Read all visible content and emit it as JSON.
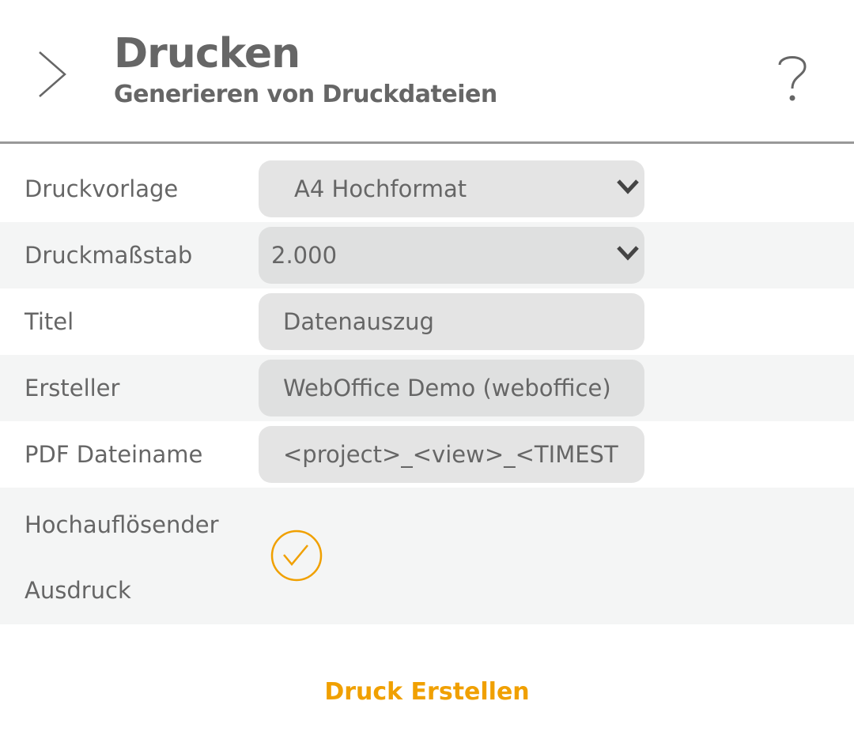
{
  "header": {
    "title": "Drucken",
    "subtitle": "Generieren von Druckdateien",
    "back_icon": "chevron-right-icon",
    "help_icon": "question-mark-icon"
  },
  "form": {
    "template": {
      "label": "Druckvorlage",
      "value": "A4 Hochformat"
    },
    "scale": {
      "label": "Druckmaßstab",
      "value": "2.000"
    },
    "title": {
      "label": "Titel",
      "value": "Datenauszug"
    },
    "author": {
      "label": "Ersteller",
      "value": "WebOffice Demo (weboffice)"
    },
    "filename": {
      "label": "PDF Dateiname",
      "value": "<project>_<view>_<TIMEST"
    },
    "high_res": {
      "label_line1": "Hochauflösender",
      "label_line2": "Ausdruck",
      "checked": true
    }
  },
  "submit_label": "Druck Erstellen",
  "colors": {
    "accent": "#f0a000",
    "text": "#666666",
    "divider": "#999999",
    "row_alt": "#f4f5f5"
  }
}
